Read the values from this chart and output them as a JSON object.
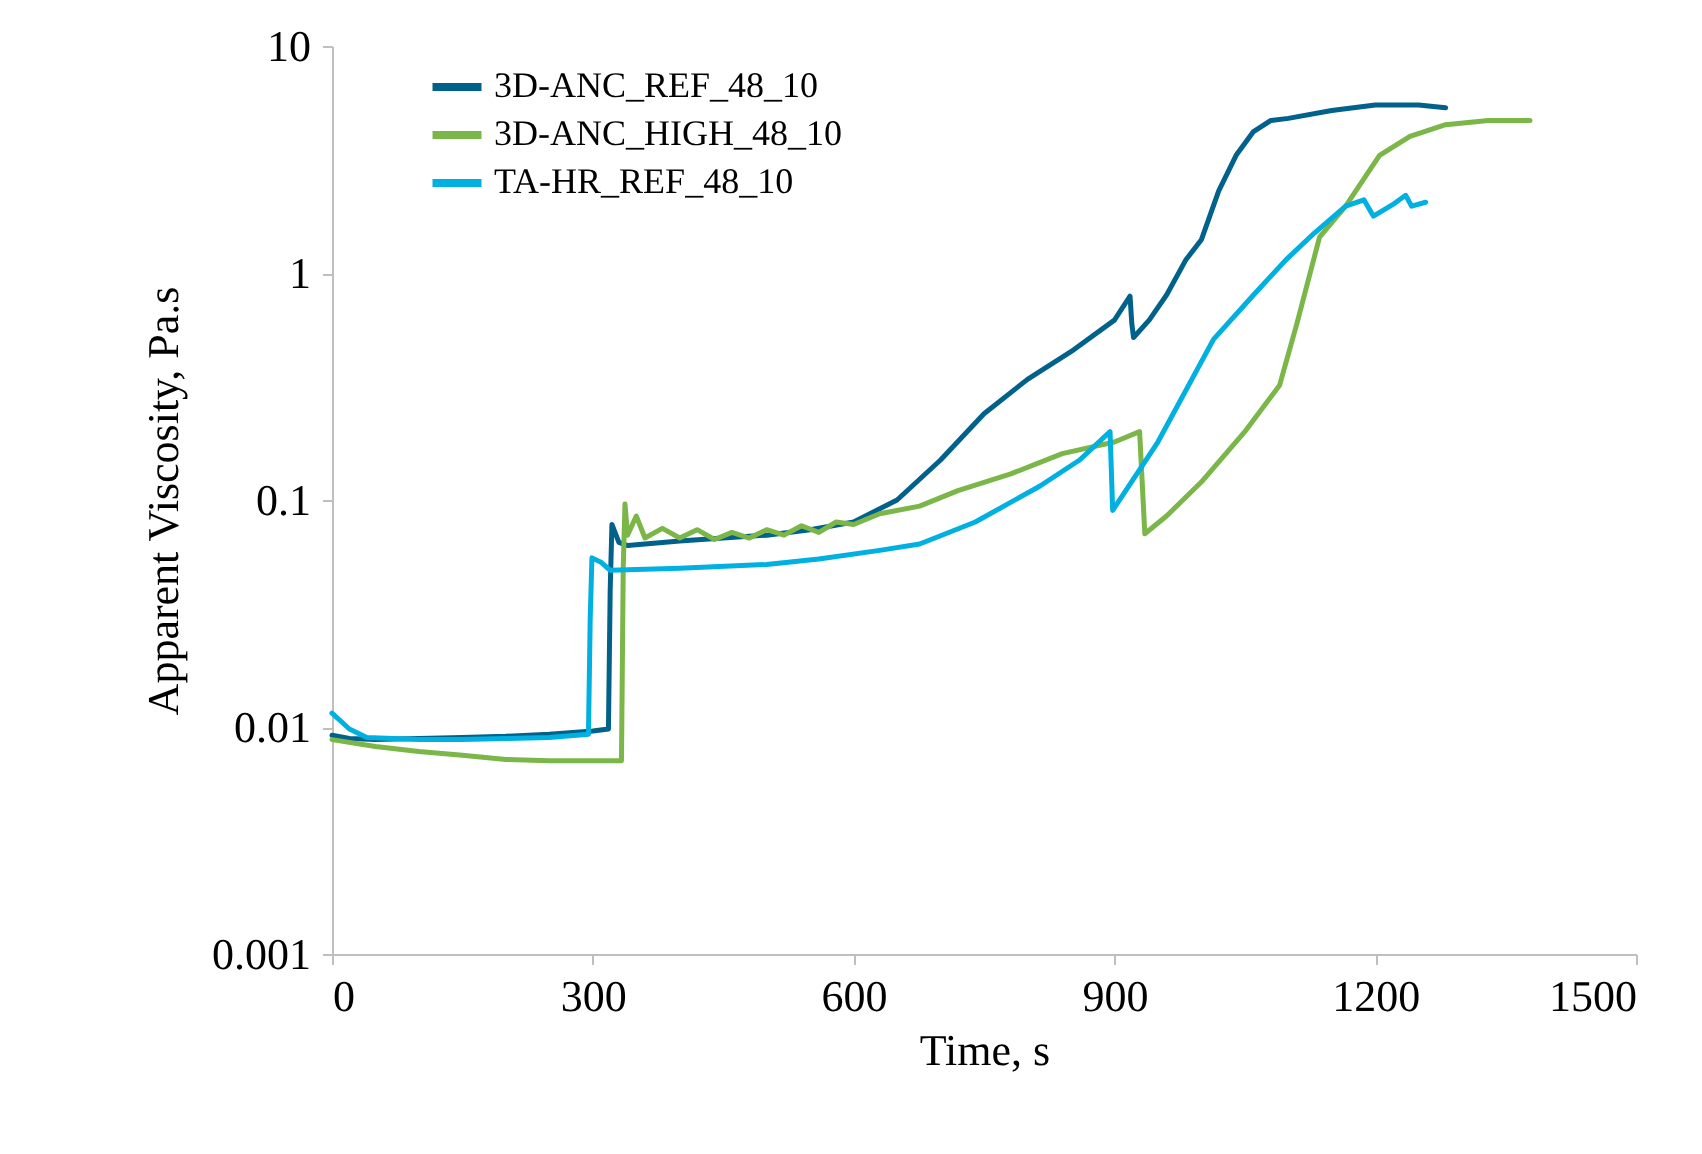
{
  "chart_data": {
    "type": "line",
    "xlabel": "Time, s",
    "ylabel": "Apparent Viscosity, Pa.s",
    "log": "y",
    "grid": false,
    "legend": "top left",
    "marker": "none",
    "line_style": "solid",
    "xlim": [
      0,
      1500
    ],
    "xticks": [
      0,
      300,
      600,
      900,
      1200,
      1500
    ],
    "ylim": [
      0.001,
      10
    ],
    "yticks": [
      0.001,
      0.01,
      0.1,
      1,
      10
    ],
    "series": [
      {
        "name": "3D-ANC_REF_48_10",
        "color": "#00628b",
        "x": [
          0,
          20,
          50,
          100,
          150,
          200,
          250,
          300,
          318,
          320,
          322,
          330,
          340,
          360,
          400,
          450,
          500,
          550,
          600,
          650,
          700,
          750,
          800,
          850,
          900,
          918,
          920,
          922,
          940,
          960,
          982,
          1000,
          1020,
          1040,
          1060,
          1080,
          1100,
          1150,
          1200,
          1250,
          1281
        ],
        "values": [
          0.0092,
          0.0089,
          0.0088,
          0.0089,
          0.009,
          0.0091,
          0.0093,
          0.0096,
          0.0098,
          0.04,
          0.078,
          0.065,
          0.063,
          0.064,
          0.066,
          0.068,
          0.07,
          0.074,
          0.08,
          0.1,
          0.15,
          0.24,
          0.34,
          0.45,
          0.62,
          0.79,
          0.6,
          0.52,
          0.62,
          0.8,
          1.14,
          1.4,
          2.3,
          3.3,
          4.2,
          4.7,
          4.8,
          5.2,
          5.5,
          5.5,
          5.35
        ]
      },
      {
        "name": "3D-ANC_HIGH_48_10",
        "color": "#7ab648",
        "x": [
          0,
          50,
          100,
          150,
          200,
          250,
          300,
          333,
          335,
          337,
          340,
          350,
          360,
          380,
          400,
          420,
          440,
          460,
          480,
          500,
          520,
          540,
          560,
          580,
          600,
          630,
          676,
          720,
          780,
          840,
          900,
          929,
          935,
          960,
          1000,
          1050,
          1090,
          1110,
          1136,
          1166,
          1205,
          1240,
          1281,
          1330,
          1378
        ],
        "values": [
          0.0088,
          0.0082,
          0.0078,
          0.0075,
          0.0072,
          0.0071,
          0.0071,
          0.0071,
          0.05,
          0.096,
          0.07,
          0.085,
          0.068,
          0.075,
          0.068,
          0.074,
          0.067,
          0.072,
          0.068,
          0.074,
          0.07,
          0.077,
          0.072,
          0.08,
          0.078,
          0.087,
          0.094,
          0.11,
          0.13,
          0.16,
          0.18,
          0.2,
          0.071,
          0.085,
          0.12,
          0.2,
          0.32,
          0.6,
          1.44,
          1.97,
          3.3,
          4.0,
          4.5,
          4.7,
          4.7
        ]
      },
      {
        "name": "TA-HR_REF_48_10",
        "color": "#00b0e0",
        "x": [
          0,
          20,
          40,
          100,
          150,
          200,
          250,
          295,
          297,
          299,
          310,
          320,
          400,
          500,
          560,
          630,
          676,
          740,
          814,
          860,
          895,
          898,
          950,
          1014,
          1060,
          1097,
          1130,
          1166,
          1187,
          1198,
          1220,
          1235,
          1242,
          1258
        ],
        "values": [
          0.0115,
          0.0098,
          0.009,
          0.0088,
          0.0088,
          0.0089,
          0.009,
          0.0093,
          0.03,
          0.0556,
          0.053,
          0.049,
          0.05,
          0.052,
          0.055,
          0.06,
          0.064,
          0.08,
          0.115,
          0.15,
          0.2,
          0.09,
          0.18,
          0.51,
          0.8,
          1.14,
          1.5,
          1.97,
          2.1,
          1.78,
          2.0,
          2.2,
          1.97,
          2.05
        ]
      }
    ]
  }
}
